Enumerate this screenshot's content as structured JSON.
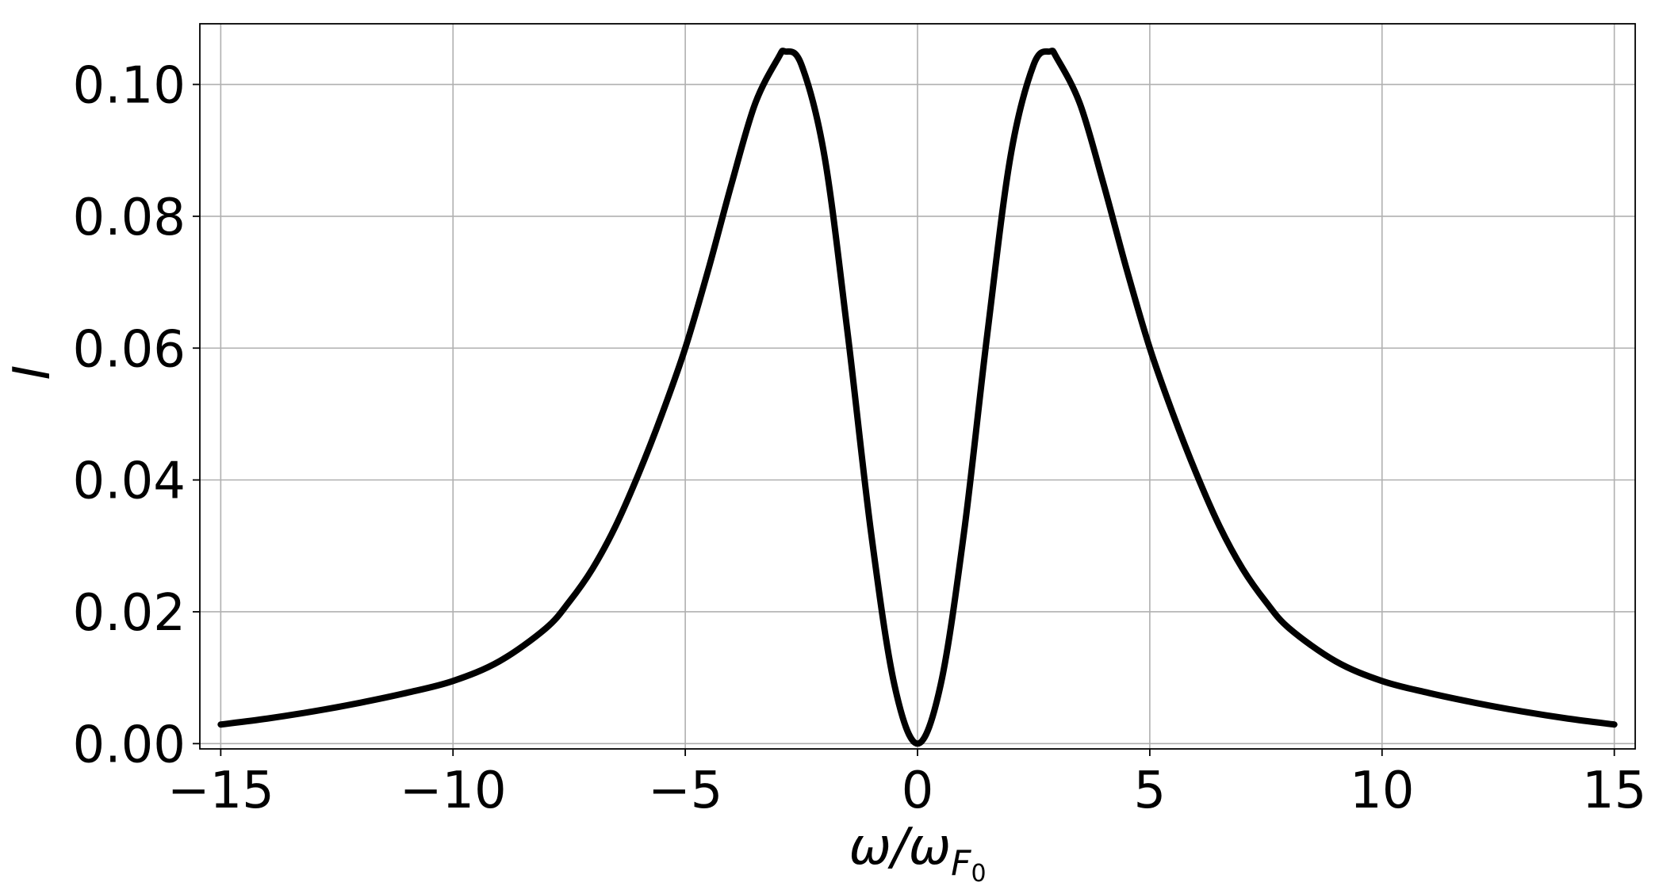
{
  "chart_data": {
    "type": "line",
    "title": "",
    "xlabel": {
      "base": "ω/ω",
      "sub": "F",
      "subsub": "0"
    },
    "ylabel": "I",
    "xlim": [
      -15.45,
      15.45
    ],
    "ylim": [
      -0.0008,
      0.1092
    ],
    "xticks": [
      -15,
      -10,
      -5,
      0,
      5,
      10,
      15
    ],
    "yticks": [
      0.0,
      0.02,
      0.04,
      0.06,
      0.08,
      0.1
    ],
    "xtick_labels": [
      "−15",
      "−10",
      "−5",
      "0",
      "5",
      "10",
      "15"
    ],
    "ytick_labels": [
      "0.00",
      "0.02",
      "0.04",
      "0.06",
      "0.08",
      "0.10"
    ],
    "grid": true,
    "legend": "none",
    "line_color": "#000000",
    "series": [
      {
        "x": [
          -15,
          -14,
          -13,
          -12,
          -11,
          -10,
          -9,
          -8,
          -7.5,
          -7,
          -6.5,
          -6,
          -5.5,
          -5,
          -4.5,
          -4,
          -3.5,
          -3,
          -2.85,
          -2.5,
          -2,
          -1.5,
          -1,
          -0.5,
          0,
          0.5,
          1,
          1.5,
          2,
          2.5,
          2.85,
          3,
          3.5,
          4,
          4.5,
          5,
          5.5,
          6,
          6.5,
          7,
          7.5,
          8,
          9,
          10,
          11,
          12,
          13,
          14,
          15
        ],
        "y": [
          0.0029,
          0.0038,
          0.0049,
          0.0062,
          0.0077,
          0.0095,
          0.0125,
          0.0175,
          0.0215,
          0.0265,
          0.033,
          0.041,
          0.05,
          0.06,
          0.072,
          0.085,
          0.097,
          0.104,
          0.105,
          0.103,
          0.089,
          0.062,
          0.032,
          0.009,
          0.0,
          0.009,
          0.032,
          0.062,
          0.089,
          0.103,
          0.105,
          0.104,
          0.097,
          0.085,
          0.072,
          0.06,
          0.05,
          0.041,
          0.033,
          0.0265,
          0.0215,
          0.0175,
          0.0125,
          0.0095,
          0.0077,
          0.0062,
          0.0049,
          0.0038,
          0.0029
        ]
      }
    ]
  }
}
